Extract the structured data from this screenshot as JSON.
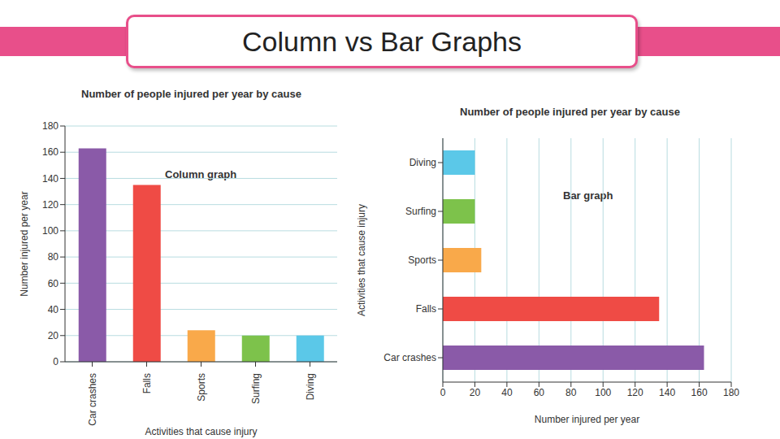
{
  "title": "Column vs Bar Graphs",
  "chart_data": [
    {
      "type": "bar",
      "title": "Number of people injured per year by cause",
      "annotation": "Column graph",
      "x_label": "Activities that cause injury",
      "y_label": "Number injured per year",
      "categories": [
        "Car crashes",
        "Falls",
        "Sports",
        "Surfing",
        "Diving"
      ],
      "values": [
        163,
        135,
        24,
        20,
        20
      ],
      "colors": [
        "#8a5aa8",
        "#ef4b45",
        "#f9a94a",
        "#7dc24b",
        "#5bc8e8"
      ],
      "ylim": [
        0,
        180
      ],
      "yticks": [
        0,
        20,
        40,
        60,
        80,
        100,
        120,
        140,
        160,
        180
      ],
      "grid": true
    },
    {
      "type": "bar",
      "orientation": "horizontal",
      "title": "Number of people injured per year by cause",
      "annotation": "Bar graph",
      "x_label": "Number injured per year",
      "y_label": "Activities that cause injury",
      "categories": [
        "Diving",
        "Surfing",
        "Sports",
        "Falls",
        "Car crashes"
      ],
      "values": [
        20,
        20,
        24,
        135,
        163
      ],
      "colors": [
        "#5bc8e8",
        "#7dc24b",
        "#f9a94a",
        "#ef4b45",
        "#8a5aa8"
      ],
      "xlim": [
        0,
        180
      ],
      "xticks": [
        0,
        20,
        40,
        60,
        80,
        100,
        120,
        140,
        160,
        180
      ],
      "grid": true
    }
  ]
}
